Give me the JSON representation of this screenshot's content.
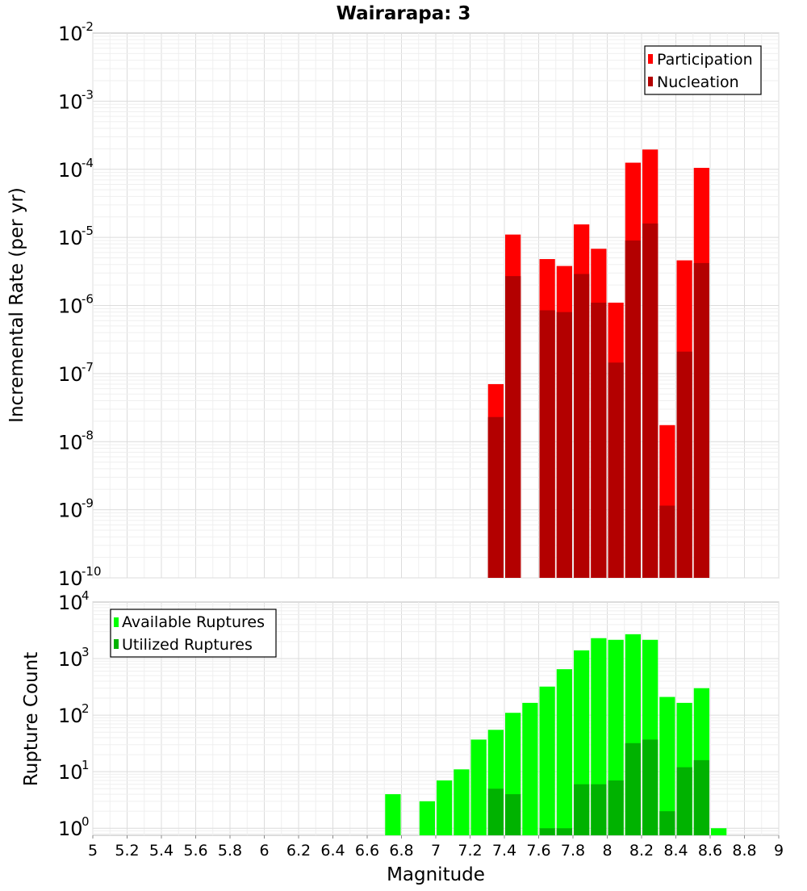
{
  "chart_data": [
    {
      "type": "bar",
      "title": "Wairarapa: 3",
      "ylabel": "Incremental Rate (per yr)",
      "xlabel": "",
      "yscale": "log",
      "ylim": [
        1e-10,
        0.01
      ],
      "xlim": [
        5,
        9
      ],
      "grid": true,
      "legend_position": "top-right",
      "y_tick_labels": [
        {
          "base": "10",
          "exp": "-2"
        },
        {
          "base": "10",
          "exp": "-3"
        },
        {
          "base": "10",
          "exp": "-4"
        },
        {
          "base": "10",
          "exp": "-5"
        },
        {
          "base": "10",
          "exp": "-6"
        },
        {
          "base": "10",
          "exp": "-7"
        },
        {
          "base": "10",
          "exp": "-8"
        },
        {
          "base": "10",
          "exp": "-9"
        },
        {
          "base": "10",
          "exp": "-10"
        }
      ],
      "bar_width": 0.1,
      "series": [
        {
          "name": "Participation",
          "color": "#ff0000",
          "points": [
            [
              7.35,
              7e-08
            ],
            [
              7.45,
              1.1e-05
            ],
            [
              7.65,
              4.8e-06
            ],
            [
              7.75,
              3.8e-06
            ],
            [
              7.85,
              1.55e-05
            ],
            [
              7.95,
              6.8e-06
            ],
            [
              8.05,
              1.1e-06
            ],
            [
              8.15,
              0.000125
            ],
            [
              8.25,
              0.000195
            ],
            [
              8.35,
              1.75e-08
            ],
            [
              8.45,
              4.6e-06
            ],
            [
              8.55,
              0.000105
            ]
          ]
        },
        {
          "name": "Nucleation",
          "color": "#b30000",
          "points": [
            [
              7.35,
              2.3e-08
            ],
            [
              7.45,
              2.7e-06
            ],
            [
              7.65,
              8.5e-07
            ],
            [
              7.75,
              8e-07
            ],
            [
              7.85,
              2.9e-06
            ],
            [
              7.95,
              1.1e-06
            ],
            [
              8.05,
              1.45e-07
            ],
            [
              8.15,
              9e-06
            ],
            [
              8.25,
              1.6e-05
            ],
            [
              8.35,
              1.15e-09
            ],
            [
              8.45,
              2.1e-07
            ],
            [
              8.55,
              4.2e-06
            ]
          ]
        }
      ]
    },
    {
      "type": "bar",
      "title": "",
      "ylabel": "Rupture Count",
      "xlabel": "Magnitude",
      "yscale": "log",
      "ylim": [
        0.75,
        10000
      ],
      "xlim": [
        5,
        9
      ],
      "grid": true,
      "legend_position": "top-left",
      "y_tick_labels": [
        {
          "base": "10",
          "exp": "4"
        },
        {
          "base": "10",
          "exp": "3"
        },
        {
          "base": "10",
          "exp": "2"
        },
        {
          "base": "10",
          "exp": "1"
        },
        {
          "base": "10",
          "exp": "0"
        }
      ],
      "x_ticks": [
        "5",
        "5.2",
        "5.4",
        "5.6",
        "5.8",
        "6",
        "6.2",
        "6.4",
        "6.6",
        "6.8",
        "7",
        "7.2",
        "7.4",
        "7.6",
        "7.8",
        "8",
        "8.2",
        "8.4",
        "8.6",
        "8.8",
        "9"
      ],
      "bar_width": 0.1,
      "series": [
        {
          "name": "Available Ruptures",
          "color": "#00ff00",
          "points": [
            [
              6.75,
              4
            ],
            [
              6.95,
              3
            ],
            [
              7.05,
              7
            ],
            [
              7.15,
              11
            ],
            [
              7.25,
              37
            ],
            [
              7.35,
              55
            ],
            [
              7.45,
              110
            ],
            [
              7.55,
              165
            ],
            [
              7.65,
              320
            ],
            [
              7.75,
              650
            ],
            [
              7.85,
              1400
            ],
            [
              7.95,
              2300
            ],
            [
              8.05,
              2150
            ],
            [
              8.15,
              2700
            ],
            [
              8.25,
              2150
            ],
            [
              8.35,
              210
            ],
            [
              8.45,
              165
            ],
            [
              8.55,
              300
            ],
            [
              8.65,
              1
            ]
          ]
        },
        {
          "name": "Utilized Ruptures",
          "color": "#00b200",
          "points": [
            [
              7.35,
              5
            ],
            [
              7.45,
              4
            ],
            [
              7.65,
              1
            ],
            [
              7.75,
              1
            ],
            [
              7.85,
              6
            ],
            [
              7.95,
              6
            ],
            [
              8.05,
              7
            ],
            [
              8.15,
              32
            ],
            [
              8.25,
              37
            ],
            [
              8.35,
              2
            ],
            [
              8.45,
              12
            ],
            [
              8.55,
              16
            ]
          ]
        }
      ]
    }
  ]
}
